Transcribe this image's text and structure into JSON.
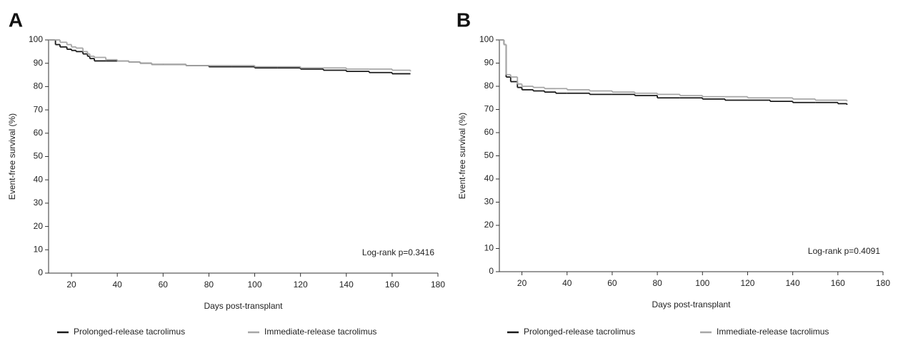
{
  "chart_data": [
    {
      "type": "line",
      "title": "A",
      "drawstyle": "steps-post",
      "xlabel": "Days post-transplant",
      "ylabel": "Event-free survival (%)",
      "annotation": "Log-rank p=0.3416",
      "xlim": [
        10,
        180
      ],
      "xticks": [
        20,
        40,
        60,
        80,
        100,
        120,
        140,
        160,
        180
      ],
      "ylim": [
        0,
        100
      ],
      "yticks": [
        0,
        10,
        20,
        30,
        40,
        50,
        60,
        70,
        80,
        90,
        100
      ],
      "legend": "bottom",
      "x": [
        10,
        13,
        15,
        18,
        20,
        22,
        25,
        27,
        28,
        30,
        35,
        40,
        45,
        50,
        55,
        60,
        70,
        80,
        90,
        100,
        110,
        120,
        130,
        140,
        150,
        160,
        168
      ],
      "series": [
        {
          "name": "Prolonged-release tacrolimus",
          "color": "#1a1a1a",
          "values": [
            100,
            98,
            97,
            96,
            95.5,
            95,
            94,
            93,
            92,
            91,
            91,
            91,
            90.5,
            90,
            89.5,
            89.5,
            89,
            88.5,
            88.5,
            88,
            88,
            87.5,
            87,
            86.5,
            86,
            85.5,
            85.5
          ]
        },
        {
          "name": "Immediate-release tacrolimus",
          "color": "#a6a6a6",
          "values": [
            100,
            100,
            99,
            98,
            97,
            96.5,
            95,
            94,
            93,
            92.5,
            91.5,
            91,
            90.5,
            90,
            89.5,
            89.5,
            89,
            89,
            89,
            88.5,
            88.5,
            88,
            88,
            87.5,
            87.5,
            87,
            86.5
          ]
        }
      ]
    },
    {
      "type": "line",
      "title": "B",
      "drawstyle": "steps-post",
      "xlabel": "Days post-transplant",
      "ylabel": "Event-free survival (%)",
      "annotation": "Log-rank p=0.4091",
      "xlim": [
        10,
        180
      ],
      "xticks": [
        20,
        40,
        60,
        80,
        100,
        120,
        140,
        160,
        180
      ],
      "ylim": [
        0,
        100
      ],
      "yticks": [
        0,
        10,
        20,
        30,
        40,
        50,
        60,
        70,
        80,
        90,
        100
      ],
      "legend": "bottom",
      "x": [
        10,
        12,
        13,
        15,
        18,
        20,
        25,
        30,
        35,
        40,
        50,
        60,
        70,
        80,
        90,
        100,
        110,
        120,
        130,
        140,
        150,
        160,
        164
      ],
      "series": [
        {
          "name": "Prolonged-release tacrolimus",
          "color": "#1a1a1a",
          "values": [
            100,
            98,
            84,
            82,
            79.5,
            78.5,
            78,
            77.5,
            77,
            77,
            76.5,
            76.5,
            76,
            75,
            75,
            74.5,
            74,
            74,
            73.5,
            73,
            73,
            72.5,
            72
          ]
        },
        {
          "name": "Immediate-release tacrolimus",
          "color": "#a6a6a6",
          "values": [
            100,
            98,
            85,
            84,
            81,
            80,
            79.5,
            79,
            79,
            78.5,
            78,
            77.5,
            77,
            76.5,
            76,
            75.5,
            75.5,
            75,
            75,
            74.5,
            74,
            74,
            73.5
          ]
        }
      ]
    }
  ]
}
